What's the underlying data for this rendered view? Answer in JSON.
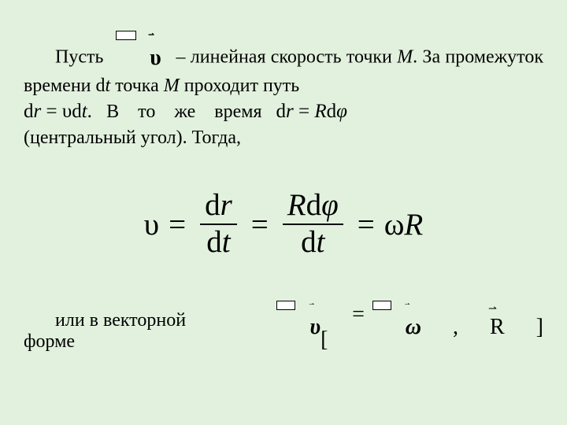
{
  "colors": {
    "background": "#e2f1de",
    "text": "#000000"
  },
  "paragraph1": {
    "t1": "Пусть",
    "t2": "– линейная скорость точки ",
    "M1": "М",
    "t3": ". За промежуток времени d",
    "t_italic": "t",
    "t4": " точка ",
    "M2": "М",
    "t5": " проходит путь"
  },
  "paragraph2": {
    "eq1_dr": "d",
    "eq1_r": "r",
    "eq1_eq": " = υd",
    "eq1_t": "t",
    "eq1_dot": ".",
    "mid": "В то же время",
    "eq2_dr": "d",
    "eq2_r": "r",
    "eq2_eq": " = ",
    "eq2_R": "R",
    "eq2_d2": "d",
    "eq2_phi": "φ",
    "tail": "(центральный  угол). Тогда,"
  },
  "mainEquation": {
    "upsilon": "υ",
    "eq": "=",
    "num1_d": "d",
    "num1_r": "r",
    "den1_d": "d",
    "den1_t": "t",
    "num2_R": "R",
    "num2_d": "d",
    "num2_phi": "φ",
    "den2_d": "d",
    "den2_t": "t",
    "omega": "ω",
    "R": "R"
  },
  "paragraph3": {
    "text": "или в векторной форме"
  },
  "vectorEq": {
    "v": "υ",
    "eq": " = [",
    "omega": "ω",
    "comma": ", ",
    "R": "R",
    "close": "]"
  },
  "style": {
    "base_fontsize": 24,
    "eq_fontsize": 39,
    "vector_eq_fontsize": 28,
    "font_family": "Times New Roman"
  }
}
